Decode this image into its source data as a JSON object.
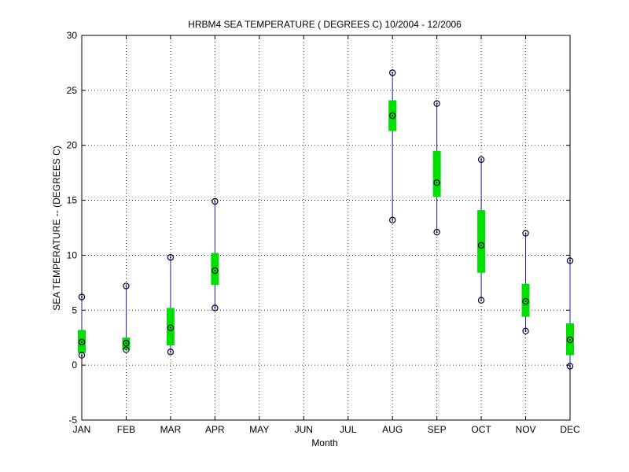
{
  "chart_data": {
    "type": "box",
    "title": "HRBM4  SEA TEMPERATURE ( DEGREES C) 10/2004 - 12/2006",
    "xlabel": "Month",
    "ylabel": "SEA TEMPERATURE -- (DEGREES C)",
    "categories": [
      "JAN",
      "FEB",
      "MAR",
      "APR",
      "MAY",
      "JUN",
      "JUL",
      "AUG",
      "SEP",
      "OCT",
      "NOV",
      "DEC"
    ],
    "ylim": [
      -5,
      30
    ],
    "yticks": [
      -5,
      0,
      5,
      10,
      15,
      20,
      25,
      30
    ],
    "grid": true,
    "colors": {
      "whisker": "#1f1fb4",
      "box": "#00e000",
      "marker": "#000033"
    },
    "series": [
      {
        "month": "JAN",
        "min": 0.9,
        "q1": 1.1,
        "median": 2.1,
        "q3": 3.2,
        "max": 6.2
      },
      {
        "month": "FEB",
        "min": 1.4,
        "q1": 1.4,
        "median": 2.0,
        "q3": 2.5,
        "max": 7.2
      },
      {
        "month": "MAR",
        "min": 1.2,
        "q1": 1.8,
        "median": 3.4,
        "q3": 5.2,
        "max": 9.8
      },
      {
        "month": "APR",
        "min": 5.2,
        "q1": 7.3,
        "median": 8.6,
        "q3": 10.2,
        "max": 14.9
      },
      {
        "month": "AUG",
        "min": 13.2,
        "q1": 21.3,
        "median": 22.7,
        "q3": 24.1,
        "max": 26.6
      },
      {
        "month": "SEP",
        "min": 12.1,
        "q1": 15.3,
        "median": 16.6,
        "q3": 19.5,
        "max": 23.8
      },
      {
        "month": "OCT",
        "min": 5.9,
        "q1": 8.4,
        "median": 10.9,
        "q3": 14.1,
        "max": 18.7
      },
      {
        "month": "NOV",
        "min": 3.1,
        "q1": 4.4,
        "median": 5.8,
        "q3": 7.4,
        "max": 12.0
      },
      {
        "month": "DEC",
        "min": -0.1,
        "q1": 0.9,
        "median": 2.3,
        "q3": 3.8,
        "max": 9.5
      }
    ]
  }
}
